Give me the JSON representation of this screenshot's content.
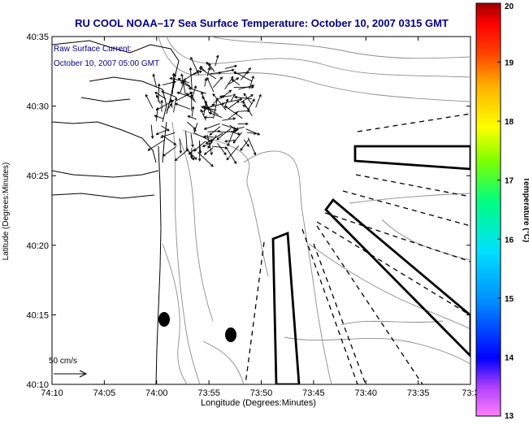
{
  "title": "RU COOL  NOAA–17  Sea Surface Temperature:  October 10, 2007 0315 GMT",
  "annotation": {
    "line1": "Raw Surface Current:",
    "line2": "October 10, 2007 05:00 GMT"
  },
  "scale_label": "50 cm/s",
  "x_axis": {
    "label": "Longitude (Degrees:Minutes)",
    "ticks": [
      "74:10",
      "74:05",
      "74:00",
      "73:55",
      "73:50",
      "73:45",
      "73:40",
      "73:35",
      "73:3"
    ]
  },
  "y_axis": {
    "label": "Latitude (Degrees:Minutes)",
    "ticks": [
      "40:10",
      "40:15",
      "40:20",
      "40:25",
      "40:30",
      "40:35"
    ]
  },
  "colorbar": {
    "label": "Temperature (°C)",
    "ticks": [
      "13",
      "14",
      "15",
      "16",
      "17",
      "18",
      "19",
      "20"
    ],
    "range": [
      13,
      20
    ]
  },
  "colors": {
    "title": "#00008b",
    "annotation": "#00008b",
    "contour": "#8c8c8c",
    "coast": "#000000"
  }
}
